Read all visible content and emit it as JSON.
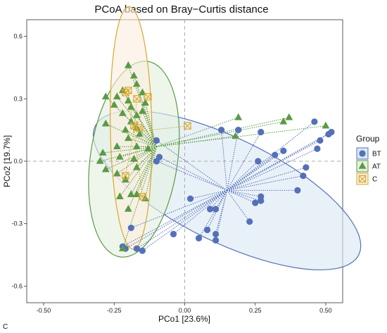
{
  "chart_data": {
    "type": "scatter",
    "title": "PCoA based on Bray−Curtis distance",
    "xlabel": "PCo1 [23.6%]",
    "ylabel": "PCo2 [19.7%]",
    "xlim": [
      -0.56,
      0.56
    ],
    "ylim": [
      -0.68,
      0.68
    ],
    "x_ticks": [
      -0.5,
      -0.25,
      0.0,
      0.25,
      0.5
    ],
    "x_tick_labels": [
      "-0.50",
      "-0.25",
      "0.00",
      "0.25",
      "0.50"
    ],
    "y_ticks": [
      -0.6,
      -0.3,
      0.0,
      0.3,
      0.6
    ],
    "y_tick_labels": [
      "-0.6",
      "-0.3",
      "0.0",
      "0.3",
      "0.6"
    ],
    "grid": false,
    "reference_lines": {
      "x": 0,
      "y": 0,
      "style": "dashed"
    },
    "legend": {
      "title": "Group",
      "position": "right"
    },
    "panel_letter": "C",
    "series": [
      {
        "name": "BT",
        "marker": "circle",
        "color": "#5470b8",
        "ellipse_fill": "#dce8f3",
        "centroid": [
          0.15,
          -0.14
        ],
        "ellipse": {
          "cx": 0.15,
          "cy": -0.14,
          "rx": 0.52,
          "ry": 0.25,
          "angle_deg": 26
        },
        "points": [
          [
            -0.1,
            0.1
          ],
          [
            -0.1,
            0.0
          ],
          [
            -0.09,
            0.02
          ],
          [
            0.13,
            0.15
          ],
          [
            0.19,
            0.15
          ],
          [
            0.27,
            0.14
          ],
          [
            0.46,
            0.19
          ],
          [
            0.52,
            0.14
          ],
          [
            0.51,
            0.13
          ],
          [
            0.48,
            0.1
          ],
          [
            0.47,
            0.06
          ],
          [
            0.35,
            0.05
          ],
          [
            0.32,
            0.03
          ],
          [
            0.26,
            0.0
          ],
          [
            0.43,
            -0.03
          ],
          [
            0.42,
            -0.07
          ],
          [
            0.4,
            -0.14
          ],
          [
            0.27,
            -0.17
          ],
          [
            0.27,
            -0.19
          ],
          [
            0.25,
            -0.2
          ],
          [
            0.02,
            -0.18
          ],
          [
            0.09,
            -0.23
          ],
          [
            0.11,
            -0.23
          ],
          [
            0.23,
            -0.29
          ],
          [
            0.08,
            -0.33
          ],
          [
            0.11,
            -0.35
          ],
          [
            -0.04,
            -0.35
          ],
          [
            0.05,
            -0.37
          ],
          [
            0.11,
            -0.38
          ],
          [
            -0.19,
            -0.32
          ],
          [
            -0.22,
            -0.41
          ],
          [
            -0.21,
            -0.42
          ],
          [
            -0.17,
            -0.42
          ],
          [
            -0.15,
            -0.43
          ]
        ]
      },
      {
        "name": "AT",
        "marker": "triangle",
        "color": "#5a9a46",
        "ellipse_fill": "#e4f0e0",
        "centroid": [
          -0.1,
          0.07
        ],
        "ellipse": {
          "cx": -0.18,
          "cy": 0.01,
          "rx": 0.35,
          "ry": 0.21,
          "angle_deg": -82
        },
        "points": [
          [
            -0.2,
            0.46
          ],
          [
            -0.18,
            0.41
          ],
          [
            -0.17,
            0.37
          ],
          [
            -0.15,
            0.33
          ],
          [
            -0.22,
            0.34
          ],
          [
            -0.24,
            0.31
          ],
          [
            -0.2,
            0.29
          ],
          [
            -0.19,
            0.26
          ],
          [
            -0.15,
            0.24
          ],
          [
            -0.17,
            0.22
          ],
          [
            -0.14,
            0.28
          ],
          [
            -0.28,
            0.31
          ],
          [
            -0.25,
            0.27
          ],
          [
            -0.22,
            0.23
          ],
          [
            -0.19,
            0.19
          ],
          [
            -0.17,
            0.16
          ],
          [
            -0.21,
            0.15
          ],
          [
            -0.28,
            0.18
          ],
          [
            -0.16,
            0.13
          ],
          [
            -0.2,
            0.11
          ],
          [
            -0.17,
            0.07
          ],
          [
            -0.13,
            0.06
          ],
          [
            -0.24,
            0.07
          ],
          [
            -0.23,
            0.02
          ],
          [
            -0.18,
            0.01
          ],
          [
            -0.29,
            0.04
          ],
          [
            -0.3,
            0.0
          ],
          [
            -0.28,
            -0.04
          ],
          [
            -0.24,
            -0.06
          ],
          [
            -0.17,
            -0.03
          ],
          [
            -0.21,
            -0.09
          ],
          [
            -0.19,
            -0.16
          ],
          [
            -0.17,
            -0.16
          ],
          [
            -0.23,
            -0.17
          ],
          [
            -0.14,
            -0.18
          ],
          [
            -0.2,
            -0.23
          ],
          [
            -0.22,
            -0.42
          ],
          [
            0.19,
            0.21
          ],
          [
            0.35,
            0.19
          ],
          [
            0.37,
            0.21
          ],
          [
            0.5,
            0.17
          ],
          [
            0.18,
            0.12
          ]
        ]
      },
      {
        "name": "C",
        "marker": "square-cross",
        "color": "#d7a92e",
        "ellipse_fill": "#fbeede",
        "centroid": [
          -0.18,
          0.14
        ],
        "ellipse": {
          "cx": -0.19,
          "cy": 0.16,
          "rx": 0.43,
          "ry": 0.1,
          "angle_deg": -91
        },
        "points": [
          [
            -0.21,
            0.33
          ],
          [
            -0.2,
            0.34
          ],
          [
            -0.17,
            0.3
          ],
          [
            -0.13,
            0.31
          ],
          [
            -0.18,
            0.17
          ],
          [
            -0.16,
            0.16
          ],
          [
            0.01,
            0.17
          ],
          [
            -0.21,
            -0.07
          ],
          [
            -0.15,
            -0.17
          ]
        ]
      }
    ]
  }
}
